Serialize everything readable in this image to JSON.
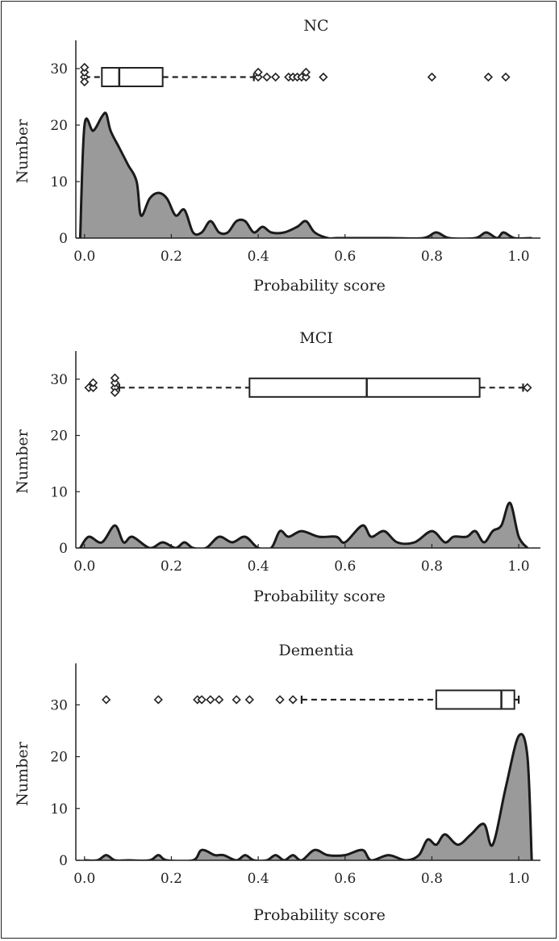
{
  "chart_data": [
    {
      "type": "area",
      "title": "NC",
      "xlabel": "Probability score",
      "ylabel": "Number",
      "xlim": [
        -0.02,
        1.05
      ],
      "ylim": [
        0,
        35
      ],
      "xticks": [
        "0.0",
        "0.2",
        "0.4",
        "0.6",
        "0.8",
        "1.0"
      ],
      "yticks": [
        "0",
        "10",
        "20",
        "30"
      ],
      "density": {
        "x": [
          -0.01,
          0.0,
          0.02,
          0.04,
          0.05,
          0.06,
          0.08,
          0.1,
          0.12,
          0.13,
          0.15,
          0.17,
          0.19,
          0.21,
          0.23,
          0.25,
          0.27,
          0.29,
          0.31,
          0.33,
          0.35,
          0.37,
          0.39,
          0.41,
          0.43,
          0.46,
          0.49,
          0.51,
          0.53,
          0.56,
          0.58,
          0.6,
          0.7,
          0.78,
          0.81,
          0.84,
          0.9,
          0.925,
          0.95,
          0.965,
          0.99,
          1.03
        ],
        "y": [
          0,
          20,
          19,
          21.5,
          22,
          19,
          16,
          13,
          10,
          4,
          7,
          8,
          7,
          4,
          5,
          1,
          1,
          3,
          1,
          1,
          3,
          3,
          1,
          2,
          1,
          1,
          2,
          3,
          1,
          0,
          0,
          0,
          0,
          0,
          1,
          0,
          0,
          1,
          0,
          1,
          0,
          0
        ]
      },
      "boxplot": {
        "y": 28.5,
        "whisker_low": 0.0,
        "q1": 0.04,
        "median": 0.08,
        "q3": 0.18,
        "whisker_high": 0.39,
        "outliers": [
          0.0,
          0.0,
          0.0,
          0.0,
          0.4,
          0.4,
          0.42,
          0.44,
          0.47,
          0.48,
          0.49,
          0.5,
          0.51,
          0.51,
          0.55,
          0.8,
          0.93,
          0.97
        ]
      }
    },
    {
      "type": "area",
      "title": "MCI",
      "xlabel": "Probability score",
      "ylabel": "Number",
      "xlim": [
        -0.02,
        1.05
      ],
      "ylim": [
        0,
        35
      ],
      "xticks": [
        "0.0",
        "0.2",
        "0.4",
        "0.6",
        "0.8",
        "1.0"
      ],
      "yticks": [
        "0",
        "10",
        "20",
        "30"
      ],
      "density": {
        "x": [
          -0.01,
          0.01,
          0.04,
          0.07,
          0.09,
          0.11,
          0.15,
          0.18,
          0.21,
          0.23,
          0.25,
          0.28,
          0.31,
          0.34,
          0.37,
          0.4,
          0.43,
          0.45,
          0.47,
          0.5,
          0.54,
          0.58,
          0.6,
          0.64,
          0.66,
          0.69,
          0.72,
          0.76,
          0.8,
          0.83,
          0.85,
          0.88,
          0.9,
          0.92,
          0.94,
          0.96,
          0.98,
          1.0,
          1.02
        ],
        "y": [
          0,
          2,
          1,
          4,
          1,
          2,
          0,
          1,
          0,
          1,
          0,
          0,
          2,
          1,
          2,
          0,
          0,
          3,
          2,
          3,
          2,
          2,
          1,
          4,
          2,
          3,
          1,
          1,
          3,
          1,
          2,
          2,
          3,
          1,
          3,
          4,
          8,
          2,
          0
        ]
      },
      "boxplot": {
        "y": 28.5,
        "whisker_low": 0.08,
        "q1": 0.38,
        "median": 0.65,
        "q3": 0.91,
        "whisker_high": 1.01,
        "outliers": [
          0.01,
          0.02,
          0.02,
          0.07,
          0.07,
          0.07,
          0.07,
          1.02
        ]
      }
    },
    {
      "type": "area",
      "title": "Dementia",
      "xlabel": "Probability score",
      "ylabel": "Number",
      "xlim": [
        -0.02,
        1.05
      ],
      "ylim": [
        0,
        38
      ],
      "xticks": [
        "0.0",
        "0.2",
        "0.4",
        "0.6",
        "0.8",
        "1.0"
      ],
      "yticks": [
        "0",
        "10",
        "20",
        "30"
      ],
      "density": {
        "x": [
          0.0,
          0.03,
          0.05,
          0.07,
          0.1,
          0.15,
          0.17,
          0.19,
          0.25,
          0.27,
          0.3,
          0.32,
          0.35,
          0.37,
          0.39,
          0.42,
          0.44,
          0.46,
          0.48,
          0.5,
          0.53,
          0.56,
          0.6,
          0.64,
          0.66,
          0.7,
          0.74,
          0.77,
          0.79,
          0.81,
          0.83,
          0.86,
          0.89,
          0.92,
          0.94,
          0.97,
          1.0,
          1.02,
          1.03
        ],
        "y": [
          0,
          0,
          1,
          0,
          0,
          0,
          1,
          0,
          0,
          2,
          1,
          1,
          0,
          1,
          0,
          0,
          1,
          0,
          1,
          0,
          2,
          1,
          1,
          2,
          0,
          1,
          0,
          1,
          4,
          3,
          5,
          3,
          5,
          7,
          3,
          14,
          24,
          20,
          0
        ]
      },
      "boxplot": {
        "y": 31,
        "whisker_low": 0.5,
        "q1": 0.81,
        "median": 0.96,
        "q3": 0.99,
        "whisker_high": 1.0,
        "outliers": [
          0.05,
          0.17,
          0.26,
          0.27,
          0.29,
          0.31,
          0.35,
          0.38,
          0.45,
          0.48
        ]
      }
    }
  ]
}
